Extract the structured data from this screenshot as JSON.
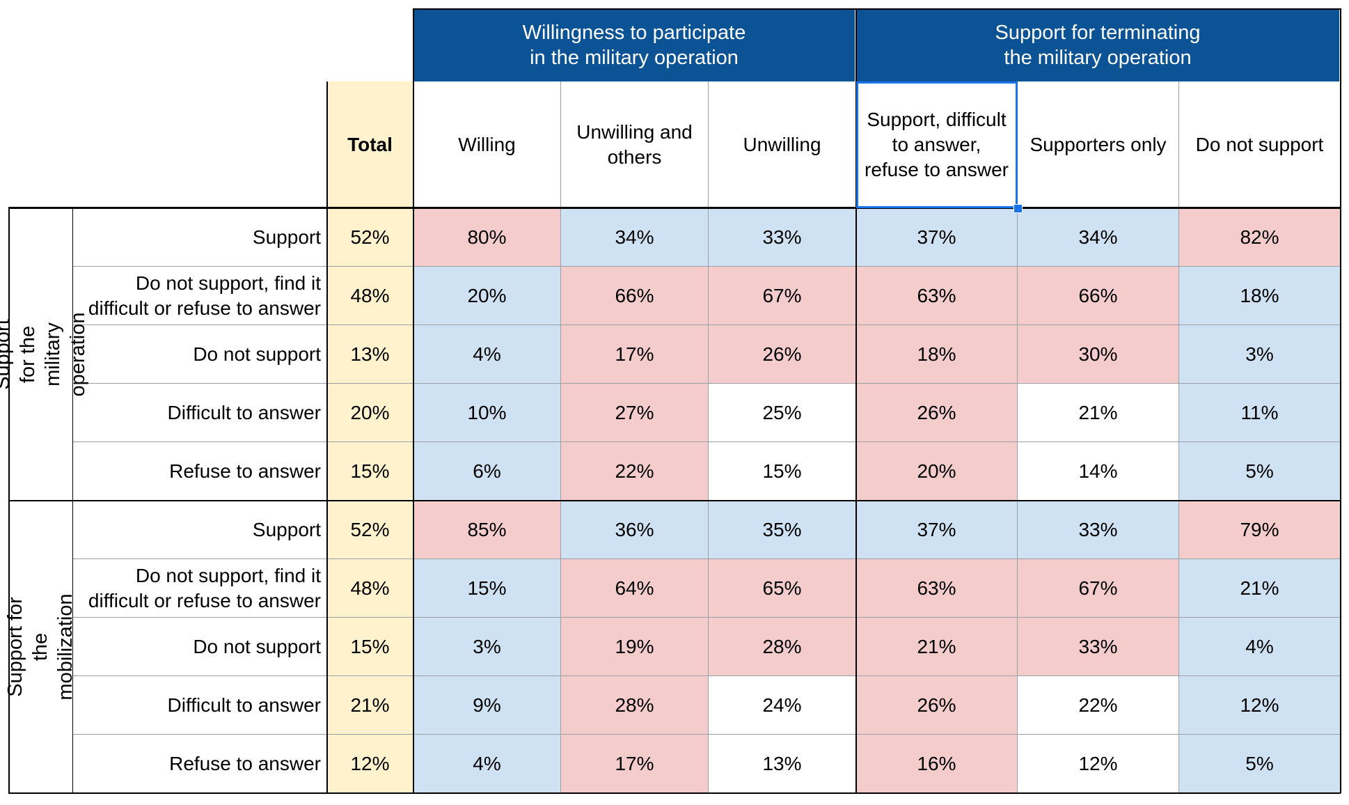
{
  "header_groups": [
    {
      "label": "Willingness to participate\nin the military operation"
    },
    {
      "label": "Support for terminating\nthe military operation"
    }
  ],
  "columns": [
    {
      "label": "Total"
    },
    {
      "label": "Willing"
    },
    {
      "label": "Unwilling and\nothers"
    },
    {
      "label": "Unwilling"
    },
    {
      "label": "Support, difficult\nto answer,\nrefuse to answer"
    },
    {
      "label": "Supporters only"
    },
    {
      "label": "Do not support"
    }
  ],
  "row_groups": [
    {
      "label": "Support for the military\noperation",
      "rows": [
        {
          "label": "Support",
          "total": "52%",
          "values": [
            "80%",
            "34%",
            "33%",
            "37%",
            "34%",
            "82%"
          ],
          "colors": [
            "red",
            "blue",
            "blue",
            "blue",
            "blue",
            "red"
          ]
        },
        {
          "label": "Do not support, find it\ndifficult or refuse to answer",
          "total": "48%",
          "values": [
            "20%",
            "66%",
            "67%",
            "63%",
            "66%",
            "18%"
          ],
          "colors": [
            "blue",
            "red",
            "red",
            "red",
            "red",
            "blue"
          ]
        },
        {
          "label": "Do not support",
          "total": "13%",
          "values": [
            "4%",
            "17%",
            "26%",
            "18%",
            "30%",
            "3%"
          ],
          "colors": [
            "blue",
            "red",
            "red",
            "red",
            "red",
            "blue"
          ]
        },
        {
          "label": "Difficult to answer",
          "total": "20%",
          "values": [
            "10%",
            "27%",
            "25%",
            "26%",
            "21%",
            "11%"
          ],
          "colors": [
            "blue",
            "red",
            "white",
            "red",
            "white",
            "blue"
          ]
        },
        {
          "label": "Refuse to answer",
          "total": "15%",
          "values": [
            "6%",
            "22%",
            "15%",
            "20%",
            "14%",
            "5%"
          ],
          "colors": [
            "blue",
            "red",
            "white",
            "red",
            "white",
            "blue"
          ]
        }
      ]
    },
    {
      "label": "Support for the mobilization",
      "rows": [
        {
          "label": "Support",
          "total": "52%",
          "values": [
            "85%",
            "36%",
            "35%",
            "37%",
            "33%",
            "79%"
          ],
          "colors": [
            "red",
            "blue",
            "blue",
            "blue",
            "blue",
            "red"
          ]
        },
        {
          "label": "Do not support, find it\ndifficult or refuse to answer",
          "total": "48%",
          "values": [
            "15%",
            "64%",
            "65%",
            "63%",
            "67%",
            "21%"
          ],
          "colors": [
            "blue",
            "red",
            "red",
            "red",
            "red",
            "blue"
          ]
        },
        {
          "label": "Do not support",
          "total": "15%",
          "values": [
            "3%",
            "19%",
            "28%",
            "21%",
            "33%",
            "4%"
          ],
          "colors": [
            "blue",
            "red",
            "red",
            "red",
            "red",
            "blue"
          ]
        },
        {
          "label": "Difficult to answer",
          "total": "21%",
          "values": [
            "9%",
            "28%",
            "24%",
            "26%",
            "22%",
            "12%"
          ],
          "colors": [
            "blue",
            "red",
            "white",
            "red",
            "white",
            "blue"
          ]
        },
        {
          "label": "Refuse to answer",
          "total": "12%",
          "values": [
            "4%",
            "17%",
            "13%",
            "16%",
            "12%",
            "5%"
          ],
          "colors": [
            "blue",
            "red",
            "white",
            "red",
            "white",
            "blue"
          ]
        }
      ]
    }
  ],
  "colors": {
    "header_blue": "#0b5394",
    "total_yellow": "#fff2cc",
    "cell_blue": "#cfe2f3",
    "cell_red": "#f4cccc",
    "selection": "#1a73e8"
  }
}
